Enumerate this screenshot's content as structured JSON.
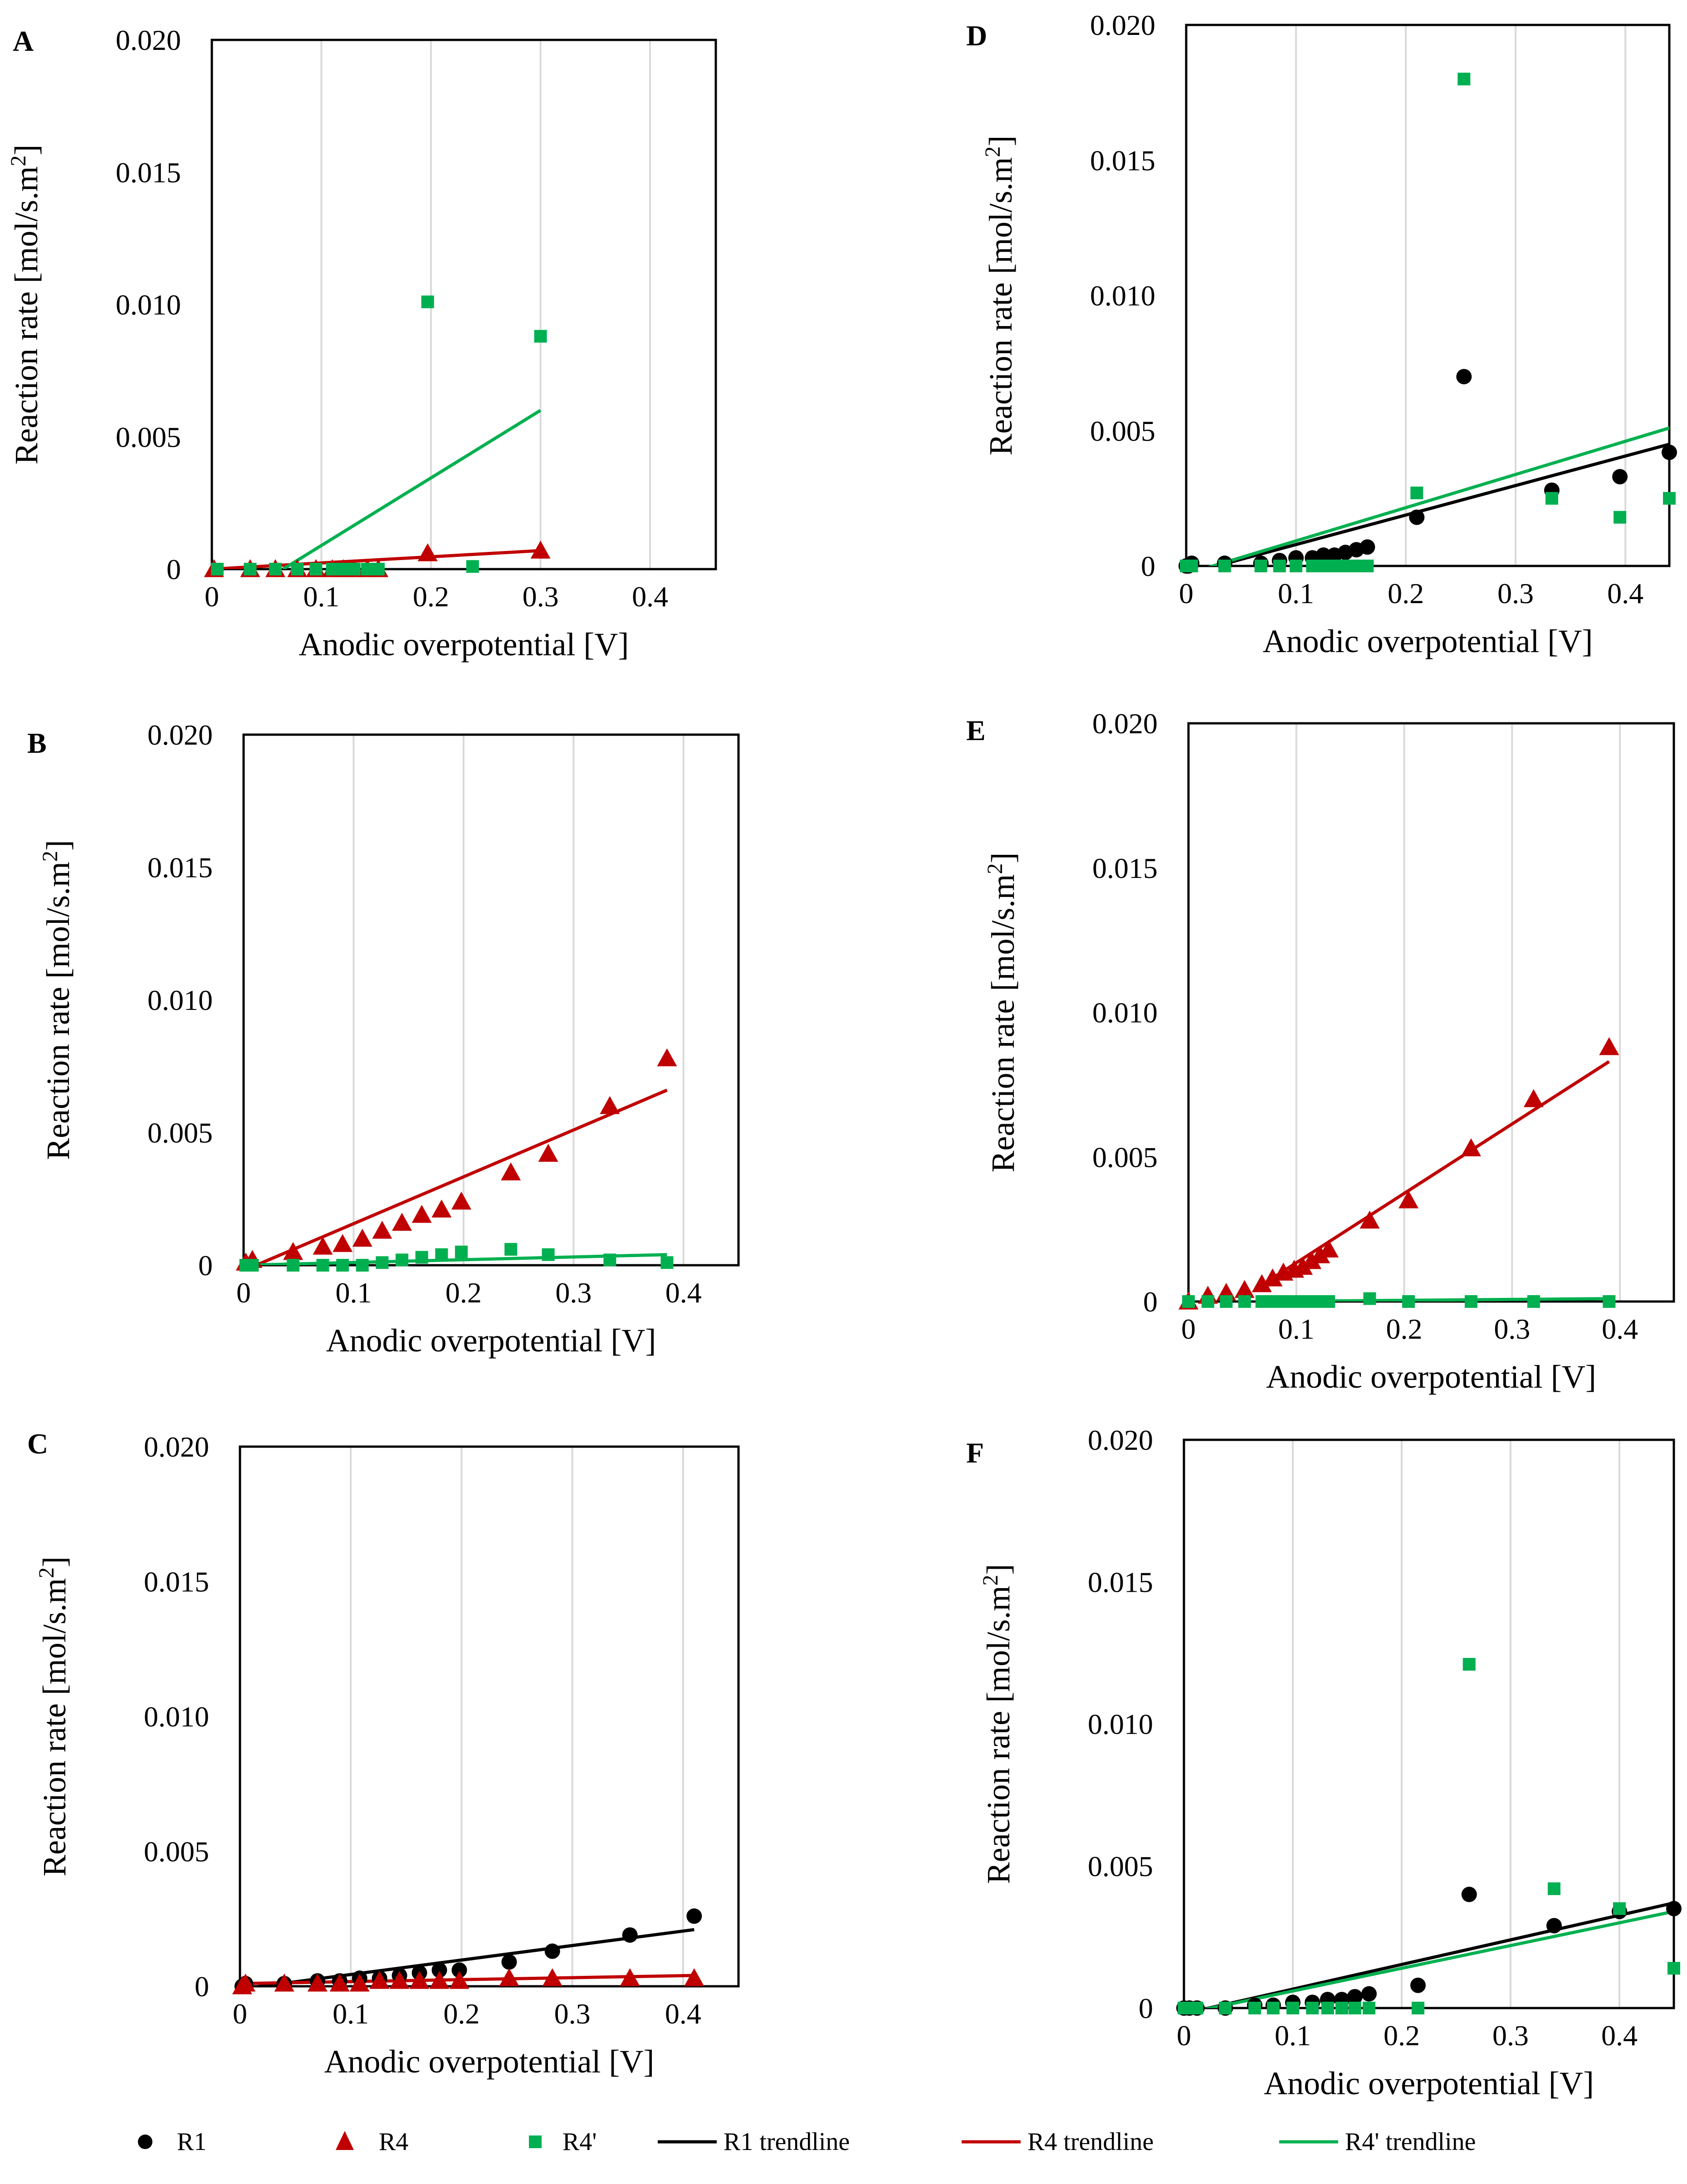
{
  "colors": {
    "R1": "#000000",
    "R4": "#c00000",
    "R4p": "#00b050",
    "grid": "#d9d9d9",
    "frame": "#000000"
  },
  "legend": {
    "items": [
      {
        "key": "R1",
        "label": "R1",
        "marker": "circle"
      },
      {
        "key": "R4",
        "label": "R4",
        "marker": "triangle"
      },
      {
        "key": "R4p",
        "label": "R4'",
        "marker": "square"
      },
      {
        "key": "R1",
        "label": "R1 trendline",
        "marker": "line"
      },
      {
        "key": "R4",
        "label": "R4 trendline",
        "marker": "line"
      },
      {
        "key": "R4p",
        "label": "R4' trendline",
        "marker": "line"
      }
    ]
  },
  "chart_data": [
    {
      "panel": "A",
      "type": "scatter",
      "xlabel": "Anodic overpotential [V]",
      "ylabel": "Reaction rate [mol/s.m",
      "ylabel_sup": "2",
      "ylabel_close": "]",
      "xlim": [
        0,
        0.46
      ],
      "ylim": [
        0,
        0.02
      ],
      "xticks": [
        0,
        0.1,
        0.2,
        0.3,
        0.4
      ],
      "xtick_labels": [
        "0",
        "0.1",
        "0.2",
        "0.3",
        "0.4"
      ],
      "yticks": [
        0,
        0.005,
        0.01,
        0.015,
        0.02
      ],
      "ytick_labels": [
        "0",
        "0.005",
        "0.010",
        "0.015",
        "0.020"
      ],
      "series": [
        {
          "key": "R4",
          "name": "R4",
          "marker": "triangle",
          "x": [
            0.002,
            0.035,
            0.058,
            0.078,
            0.095,
            0.11,
            0.12,
            0.13,
            0.142,
            0.152,
            0.197,
            0.3
          ],
          "y": [
            0.0,
            0.0,
            0.0,
            0.0,
            0.0,
            0.0,
            0.0,
            0.0,
            0.0,
            0.0,
            0.0006,
            0.0007
          ]
        },
        {
          "key": "R4p",
          "name": "R4'",
          "marker": "square",
          "x": [
            0.005,
            0.035,
            0.058,
            0.078,
            0.095,
            0.11,
            0.12,
            0.13,
            0.142,
            0.152,
            0.197,
            0.238,
            0.3
          ],
          "y": [
            0.0,
            0.0,
            0.0,
            0.0,
            0.0,
            0.0,
            0.0,
            0.0,
            0.0,
            0.0,
            0.0101,
            0.0001,
            0.0088
          ]
        }
      ],
      "trendlines": [
        {
          "key": "R4",
          "x": [
            0.0,
            0.3
          ],
          "y": [
            0.0,
            0.0007
          ]
        },
        {
          "key": "R4p",
          "x": [
            0.065,
            0.3
          ],
          "y": [
            0.0,
            0.006
          ]
        }
      ]
    },
    {
      "panel": "B",
      "type": "scatter",
      "xlabel": "Anodic overpotential [V]",
      "ylabel": "Reaction rate [mol/s.m",
      "ylabel_sup": "2",
      "ylabel_close": "]",
      "xlim": [
        0,
        0.45
      ],
      "ylim": [
        0,
        0.02
      ],
      "xticks": [
        0,
        0.1,
        0.2,
        0.3,
        0.4
      ],
      "xtick_labels": [
        "0",
        "0.1",
        "0.2",
        "0.3",
        "0.4"
      ],
      "yticks": [
        0,
        0.005,
        0.01,
        0.015,
        0.02
      ],
      "ytick_labels": [
        "0",
        "0.005",
        "0.010",
        "0.015",
        "0.020"
      ],
      "series": [
        {
          "key": "R4",
          "name": "R4",
          "marker": "triangle",
          "x": [
            0.002,
            0.008,
            0.045,
            0.072,
            0.09,
            0.108,
            0.126,
            0.144,
            0.162,
            0.18,
            0.198,
            0.243,
            0.277,
            0.333,
            0.385
          ],
          "y": [
            0.0001,
            0.0002,
            0.0005,
            0.0007,
            0.0008,
            0.001,
            0.0013,
            0.0016,
            0.0019,
            0.0021,
            0.0024,
            0.0035,
            0.0042,
            0.006,
            0.0078
          ]
        },
        {
          "key": "R4p",
          "name": "R4'",
          "marker": "square",
          "x": [
            0.002,
            0.008,
            0.045,
            0.072,
            0.09,
            0.108,
            0.126,
            0.144,
            0.162,
            0.18,
            0.198,
            0.243,
            0.277,
            0.333,
            0.385
          ],
          "y": [
            0.0,
            0.0,
            0.0,
            0.0,
            0.0,
            0.0,
            0.0001,
            0.0002,
            0.0003,
            0.0004,
            0.0005,
            0.0006,
            0.0004,
            0.0002,
            0.0001
          ]
        }
      ],
      "trendlines": [
        {
          "key": "R4",
          "x": [
            0.0,
            0.385
          ],
          "y": [
            -0.0002,
            0.0066
          ]
        },
        {
          "key": "R4p",
          "x": [
            0.0,
            0.385
          ],
          "y": [
            0.0,
            0.0004
          ]
        }
      ]
    },
    {
      "panel": "C",
      "type": "scatter",
      "xlabel": "Anodic overpotential [V]",
      "ylabel": "Reaction rate [mol/s.m",
      "ylabel_sup": "2",
      "ylabel_close": "]",
      "xlim": [
        0,
        0.45
      ],
      "ylim": [
        0,
        0.02
      ],
      "xticks": [
        0,
        0.1,
        0.2,
        0.3,
        0.4
      ],
      "xtick_labels": [
        "0",
        "0.1",
        "0.2",
        "0.3",
        "0.4"
      ],
      "yticks": [
        0,
        0.005,
        0.01,
        0.015,
        0.02
      ],
      "ytick_labels": [
        "0",
        "0.005",
        "0.010",
        "0.015",
        "0.020"
      ],
      "series": [
        {
          "key": "R1",
          "name": "R1",
          "marker": "circle",
          "x": [
            0.002,
            0.005,
            0.04,
            0.07,
            0.09,
            0.108,
            0.126,
            0.144,
            0.162,
            0.18,
            0.198,
            0.243,
            0.282,
            0.352,
            0.41
          ],
          "y": [
            0.0,
            0.0001,
            0.0001,
            0.0002,
            0.0002,
            0.0003,
            0.0003,
            0.0004,
            0.0005,
            0.0006,
            0.0006,
            0.0009,
            0.0013,
            0.0019,
            0.0026
          ]
        },
        {
          "key": "R4",
          "name": "R4",
          "marker": "triangle",
          "x": [
            0.002,
            0.005,
            0.04,
            0.07,
            0.09,
            0.108,
            0.126,
            0.144,
            0.162,
            0.18,
            0.198,
            0.243,
            0.282,
            0.352,
            0.41
          ],
          "y": [
            0.0,
            0.0001,
            0.0001,
            0.0001,
            0.0001,
            0.0001,
            0.0002,
            0.0002,
            0.0002,
            0.0002,
            0.0002,
            0.0003,
            0.0003,
            0.0003,
            0.0003
          ]
        }
      ],
      "trendlines": [
        {
          "key": "R1",
          "x": [
            0.0,
            0.41
          ],
          "y": [
            -0.0001,
            0.0021
          ]
        },
        {
          "key": "R4",
          "x": [
            0.0,
            0.41
          ],
          "y": [
            0.0001,
            0.0004
          ]
        }
      ]
    },
    {
      "panel": "D",
      "type": "scatter",
      "xlabel": "Anodic overpotential [V]",
      "ylabel": "Reaction rate [mol/s.m",
      "ylabel_sup": "2",
      "ylabel_close": "]",
      "xlim": [
        0,
        0.44
      ],
      "ylim": [
        0,
        0.02
      ],
      "xticks": [
        0,
        0.1,
        0.2,
        0.3,
        0.4
      ],
      "xtick_labels": [
        "0",
        "0.1",
        "0.2",
        "0.3",
        "0.4"
      ],
      "yticks": [
        0,
        0.005,
        0.01,
        0.015,
        0.02
      ],
      "ytick_labels": [
        "0",
        "0.005",
        "0.010",
        "0.015",
        "0.020"
      ],
      "series": [
        {
          "key": "R1",
          "name": "R1",
          "marker": "circle",
          "x": [
            0.0,
            0.002,
            0.005,
            0.035,
            0.068,
            0.085,
            0.1,
            0.115,
            0.125,
            0.135,
            0.145,
            0.155,
            0.165,
            0.21,
            0.253,
            0.333,
            0.395,
            0.44
          ],
          "y": [
            0.0,
            0.0,
            0.0001,
            0.0001,
            0.0001,
            0.0002,
            0.0003,
            0.0003,
            0.0004,
            0.0004,
            0.0005,
            0.0006,
            0.0007,
            0.0018,
            0.007,
            0.0028,
            0.0033,
            0.0042
          ]
        },
        {
          "key": "R4p",
          "name": "R4'",
          "marker": "square",
          "x": [
            0.0,
            0.005,
            0.035,
            0.068,
            0.085,
            0.1,
            0.115,
            0.125,
            0.135,
            0.145,
            0.155,
            0.165,
            0.21,
            0.253,
            0.333,
            0.395,
            0.44
          ],
          "y": [
            0.0,
            0.0,
            0.0,
            0.0,
            0.0,
            0.0,
            0.0,
            0.0,
            0.0,
            0.0,
            0.0,
            0.0,
            0.0027,
            0.018,
            0.0025,
            0.0018,
            0.0025
          ]
        }
      ],
      "trendlines": [
        {
          "key": "R1",
          "x": [
            0.0,
            0.44
          ],
          "y": [
            -0.0003,
            0.0045
          ]
        },
        {
          "key": "R4p",
          "x": [
            0.0,
            0.44
          ],
          "y": [
            -0.0003,
            0.0051
          ]
        }
      ]
    },
    {
      "panel": "E",
      "type": "scatter",
      "xlabel": "Anodic overpotential [V]",
      "ylabel": "Reaction rate [mol/s.m",
      "ylabel_sup": "2",
      "ylabel_close": "]",
      "xlim": [
        0,
        0.45
      ],
      "ylim": [
        0,
        0.02
      ],
      "xticks": [
        0,
        0.1,
        0.2,
        0.3,
        0.4
      ],
      "xtick_labels": [
        "0",
        "0.1",
        "0.2",
        "0.3",
        "0.4"
      ],
      "yticks": [
        0,
        0.005,
        0.01,
        0.015,
        0.02
      ],
      "ytick_labels": [
        "0",
        "0.005",
        "0.010",
        "0.015",
        "0.020"
      ],
      "series": [
        {
          "key": "R4",
          "name": "R4",
          "marker": "triangle",
          "x": [
            0.0,
            0.018,
            0.035,
            0.052,
            0.068,
            0.078,
            0.088,
            0.098,
            0.106,
            0.114,
            0.122,
            0.13,
            0.168,
            0.204,
            0.262,
            0.32,
            0.39
          ],
          "y": [
            0.0,
            0.0002,
            0.0003,
            0.0004,
            0.0006,
            0.0008,
            0.001,
            0.0011,
            0.0012,
            0.0014,
            0.0016,
            0.0018,
            0.0028,
            0.0035,
            0.0053,
            0.007,
            0.0088
          ]
        },
        {
          "key": "R4p",
          "name": "R4'",
          "marker": "square",
          "x": [
            0.0,
            0.018,
            0.035,
            0.052,
            0.068,
            0.078,
            0.088,
            0.098,
            0.106,
            0.114,
            0.122,
            0.13,
            0.168,
            0.204,
            0.262,
            0.32,
            0.39
          ],
          "y": [
            0.0,
            0.0,
            0.0,
            0.0,
            0.0,
            0.0,
            0.0,
            0.0,
            0.0,
            0.0,
            0.0,
            0.0,
            0.0001,
            0.0,
            0.0,
            0.0,
            0.0
          ]
        }
      ],
      "trendlines": [
        {
          "key": "R4",
          "x": [
            0.065,
            0.39
          ],
          "y": [
            0.0005,
            0.0083
          ]
        },
        {
          "key": "R4p",
          "x": [
            0.065,
            0.39
          ],
          "y": [
            0.0,
            0.0001
          ]
        }
      ]
    },
    {
      "panel": "F",
      "type": "scatter",
      "xlabel": "Anodic overpotential [V]",
      "ylabel": "Reaction rate [mol/s.m",
      "ylabel_sup": "2",
      "ylabel_close": "]",
      "xlim": [
        0,
        0.45
      ],
      "ylim": [
        0,
        0.02
      ],
      "xticks": [
        0,
        0.1,
        0.2,
        0.3,
        0.4
      ],
      "xtick_labels": [
        "0",
        "0.1",
        "0.2",
        "0.3",
        "0.4"
      ],
      "yticks": [
        0,
        0.005,
        0.01,
        0.015,
        0.02
      ],
      "ytick_labels": [
        "0",
        "0.005",
        "0.010",
        "0.015",
        "0.020"
      ],
      "series": [
        {
          "key": "R1",
          "name": "R1",
          "marker": "circle",
          "x": [
            0.0,
            0.005,
            0.012,
            0.038,
            0.065,
            0.082,
            0.1,
            0.118,
            0.132,
            0.145,
            0.157,
            0.17,
            0.215,
            0.262,
            0.34,
            0.4,
            0.45
          ],
          "y": [
            0.0,
            0.0,
            0.0,
            0.0,
            0.0001,
            0.0001,
            0.0002,
            0.0002,
            0.0003,
            0.0003,
            0.0004,
            0.0005,
            0.0008,
            0.004,
            0.0029,
            0.0034,
            0.0035
          ]
        },
        {
          "key": "R4p",
          "name": "R4'",
          "marker": "square",
          "x": [
            0.0,
            0.005,
            0.012,
            0.038,
            0.065,
            0.082,
            0.1,
            0.118,
            0.132,
            0.145,
            0.157,
            0.17,
            0.215,
            0.262,
            0.34,
            0.4,
            0.45
          ],
          "y": [
            0.0,
            0.0,
            0.0,
            0.0,
            0.0,
            0.0,
            0.0,
            0.0,
            0.0,
            0.0,
            0.0,
            0.0,
            0.0,
            0.0121,
            0.0042,
            0.0035,
            0.0014
          ]
        }
      ],
      "trendlines": [
        {
          "key": "R1",
          "x": [
            0.0,
            0.45
          ],
          "y": [
            -0.0002,
            0.0037
          ]
        },
        {
          "key": "R4p",
          "x": [
            0.0,
            0.45
          ],
          "y": [
            -0.0002,
            0.0034
          ]
        }
      ]
    }
  ]
}
